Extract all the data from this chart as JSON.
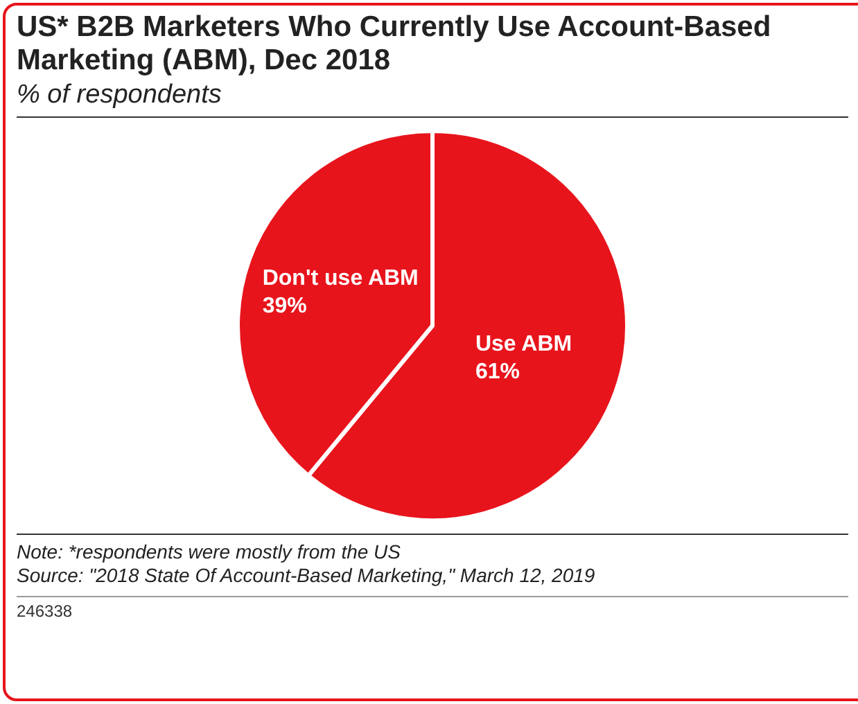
{
  "chart_data": {
    "type": "pie",
    "title": "US* B2B Marketers Who Currently Use Account-Based Marketing (ABM), Dec 2018",
    "subtitle": "% of respondents",
    "categories": [
      "Use ABM",
      "Don't use ABM"
    ],
    "values": [
      61,
      39
    ],
    "colors": [
      "#e8141c",
      "#e8141c"
    ],
    "value_labels": [
      "61%",
      "39%"
    ],
    "legend": false,
    "annotations": [
      "Note: *respondents were mostly from the US",
      "Source: \"2018 State Of Account-Based Marketing,\" March 12, 2019",
      "246338"
    ]
  }
}
